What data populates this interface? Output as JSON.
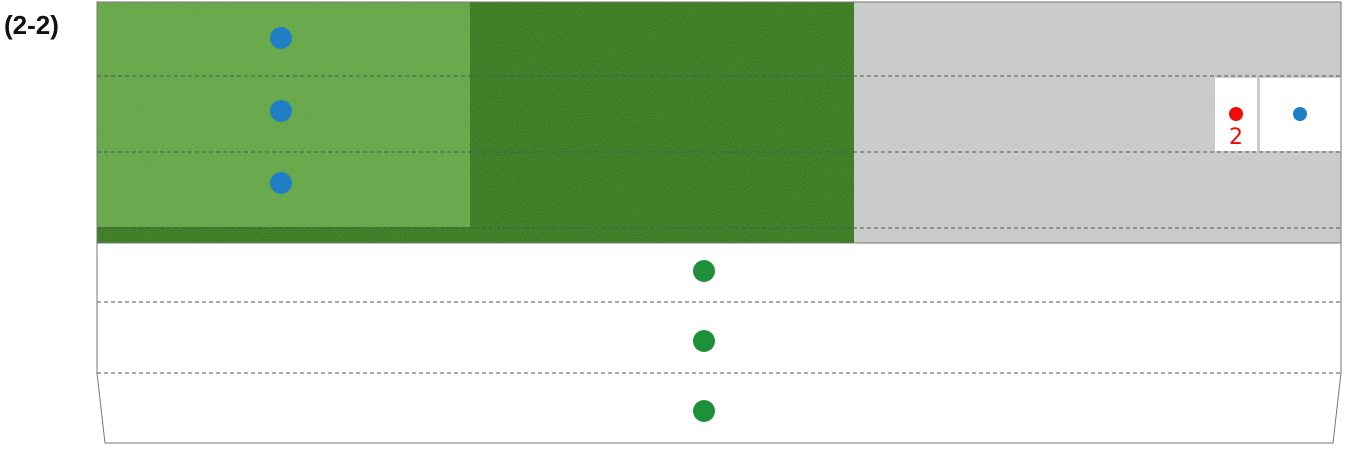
{
  "figure": {
    "label": "(2-2)"
  },
  "colors": {
    "grass_dark": "#4f9a31",
    "grass_light": "#76b957",
    "gray_area": "#cbcbcb",
    "white": "#ffffff",
    "blue_dot": "#1f7fc4",
    "green_dot": "#1e9039",
    "red_dot": "#f00a0a",
    "dashed_line": "#555555",
    "outline": "#666666"
  },
  "markers": {
    "red_number": "2"
  }
}
